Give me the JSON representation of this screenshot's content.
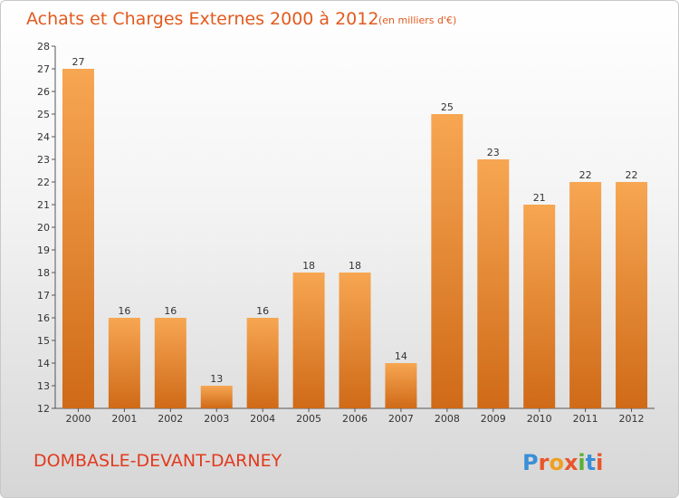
{
  "chart_data": {
    "type": "bar",
    "title": "Achats et Charges Externes 2000 à 2012",
    "subtitle": "(en milliers d'€)",
    "categories": [
      "2000",
      "2001",
      "2002",
      "2003",
      "2004",
      "2005",
      "2006",
      "2007",
      "2008",
      "2009",
      "2010",
      "2011",
      "2012"
    ],
    "values": [
      27,
      16,
      16,
      13,
      16,
      18,
      18,
      14,
      25,
      23,
      21,
      22,
      22
    ],
    "ylim": [
      12,
      28
    ],
    "yticks": [
      12,
      13,
      14,
      15,
      16,
      17,
      18,
      19,
      20,
      21,
      22,
      23,
      24,
      25,
      26,
      27,
      28
    ],
    "xlabel": "",
    "ylabel": "",
    "grid": false,
    "bar_color_top": "#f7a652",
    "bar_color_bottom": "#cf6a18"
  },
  "footer": {
    "commune": "DOMBASLE-DEVANT-DARNEY",
    "brand_letters": [
      "P",
      "r",
      "o",
      "x",
      "i",
      "t",
      "i"
    ],
    "brand_colors": [
      "#3a8fd6",
      "#e8562a",
      "#f0a020",
      "#e8562a",
      "#5ab030",
      "#3a8fd6",
      "#e8562a"
    ]
  }
}
